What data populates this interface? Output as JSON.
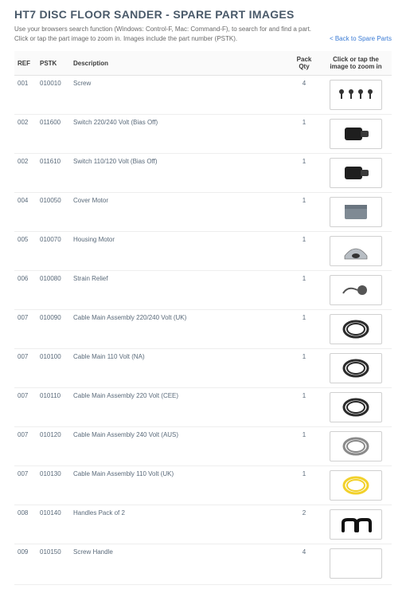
{
  "page": {
    "title": "HT7 DISC FLOOR SANDER - SPARE PART IMAGES",
    "instruction": "Use your browsers search function (Windows: Control-F, Mac: Command-F), to search for and find a part.",
    "zoom_note": "Click or tap the part image to zoom in. Images include the part number (PSTK).",
    "back_link": "< Back to Spare Parts"
  },
  "table": {
    "headers": {
      "ref": "REF",
      "pstk": "PSTK",
      "description": "Description",
      "pack_qty": "Pack Qty",
      "image": "Click or tap the image to zoom in"
    },
    "rows": [
      {
        "ref": "001",
        "pstk": "010010",
        "description": "Screw",
        "qty": "4",
        "icon": "screws"
      },
      {
        "ref": "002",
        "pstk": "011600",
        "description": "Switch 220/240 Volt (Bias Off)",
        "qty": "1",
        "icon": "switch-dark"
      },
      {
        "ref": "002",
        "pstk": "011610",
        "description": "Switch 110/120 Volt (Bias Off)",
        "qty": "1",
        "icon": "switch-dark"
      },
      {
        "ref": "004",
        "pstk": "010050",
        "description": "Cover Motor",
        "qty": "1",
        "icon": "box"
      },
      {
        "ref": "005",
        "pstk": "010070",
        "description": "Housing Motor",
        "qty": "1",
        "icon": "housing"
      },
      {
        "ref": "006",
        "pstk": "010080",
        "description": "Strain Relief",
        "qty": "1",
        "icon": "relief"
      },
      {
        "ref": "007",
        "pstk": "010090",
        "description": "Cable Main Assembly 220/240 Volt (UK)",
        "qty": "1",
        "icon": "cable-dark"
      },
      {
        "ref": "007",
        "pstk": "010100",
        "description": "Cable Main 110 Volt (NA)",
        "qty": "1",
        "icon": "cable-dark"
      },
      {
        "ref": "007",
        "pstk": "010110",
        "description": "Cable Main Assembly 220 Volt (CEE)",
        "qty": "1",
        "icon": "cable-dark"
      },
      {
        "ref": "007",
        "pstk": "010120",
        "description": "Cable Main Assembly 240 Volt (AUS)",
        "qty": "1",
        "icon": "cable-grey"
      },
      {
        "ref": "007",
        "pstk": "010130",
        "description": "Cable Main Assembly 110 Volt (UK)",
        "qty": "1",
        "icon": "cable-yellow"
      },
      {
        "ref": "008",
        "pstk": "010140",
        "description": "Handles Pack of 2",
        "qty": "2",
        "icon": "handles"
      },
      {
        "ref": "009",
        "pstk": "010150",
        "description": "Screw Handle",
        "qty": "4",
        "icon": ""
      }
    ]
  },
  "colors": {
    "heading": "#4a5a6a",
    "text": "#5a6a7a",
    "link": "#3a7bd5",
    "border": "#e3e3e3",
    "cable_dark": "#2b2b2b",
    "cable_grey": "#8a8a8a",
    "cable_yellow": "#f2d12b",
    "metal": "#555555"
  }
}
